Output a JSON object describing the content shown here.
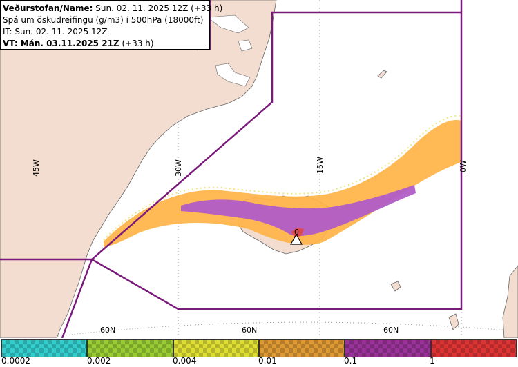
{
  "info": {
    "line1_bold": "Veðurstofan/Name:",
    "line1_rest": " Sun. 02. 11. 2025 12Z (+33 h)",
    "line2": "Spá um öskudreifingu (g/m3) í 500hPa (18000ft)",
    "line3": "IT: Sun. 02. 11. 2025 12Z",
    "line4_bold": "VT:",
    "line4_bold2": " Mán. 03.11.2025 21Z",
    "line4_rest": " (+33 h)"
  },
  "grid_labels": {
    "lon_45w": "45W",
    "lon_30w": "30W",
    "lon_15w": "15W",
    "lon_0w": "0W",
    "lat_60n_a": "60N",
    "lat_60n_b": "60N",
    "lat_60n_c": "60N"
  },
  "volcano_label": "0",
  "legend": {
    "colors": [
      "#33cccc",
      "#99cc33",
      "#dddd33",
      "#dd9933",
      "#993399",
      "#dd3333"
    ],
    "ticks": [
      "0.0002",
      "0.002",
      "0.004",
      "0.01",
      "0.1",
      "1"
    ]
  },
  "colors": {
    "land": "#f2ddd0",
    "plume_low": "#ffb347",
    "plume_high": "#b15cc7",
    "plume_peak": "#e04a4a",
    "boundary": "#7a1a7a"
  }
}
